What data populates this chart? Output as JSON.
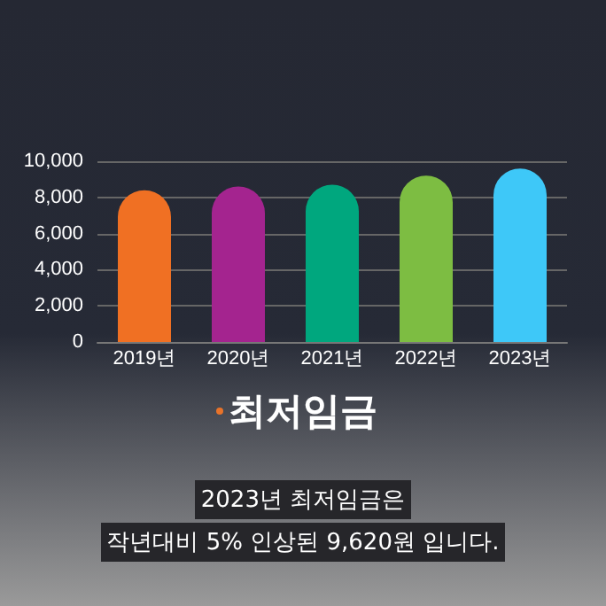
{
  "chart_data": {
    "type": "bar",
    "title": "최저임금",
    "categories": [
      "2019년",
      "2020년",
      "2021년",
      "2022년",
      "2023년"
    ],
    "values": [
      8400,
      8600,
      8700,
      9200,
      9600
    ],
    "colors": [
      "#f07023",
      "#a4248f",
      "#00a77e",
      "#7dbd42",
      "#3ec8f8"
    ],
    "ylim": [
      0,
      10000
    ],
    "yticks": [
      0,
      {
        "value": 2000,
        "label": "2,000"
      },
      {
        "value": 4000,
        "label": "4,000"
      },
      {
        "value": 6000,
        "label": "6,000"
      },
      {
        "value": 8000,
        "label": "8,000"
      },
      {
        "value": 10000,
        "label": "10,000"
      }
    ],
    "grid": "y",
    "annotations": [
      "2023년 최저임금은",
      "작년대비 5% 인상된 9,620원 입니다."
    ]
  }
}
